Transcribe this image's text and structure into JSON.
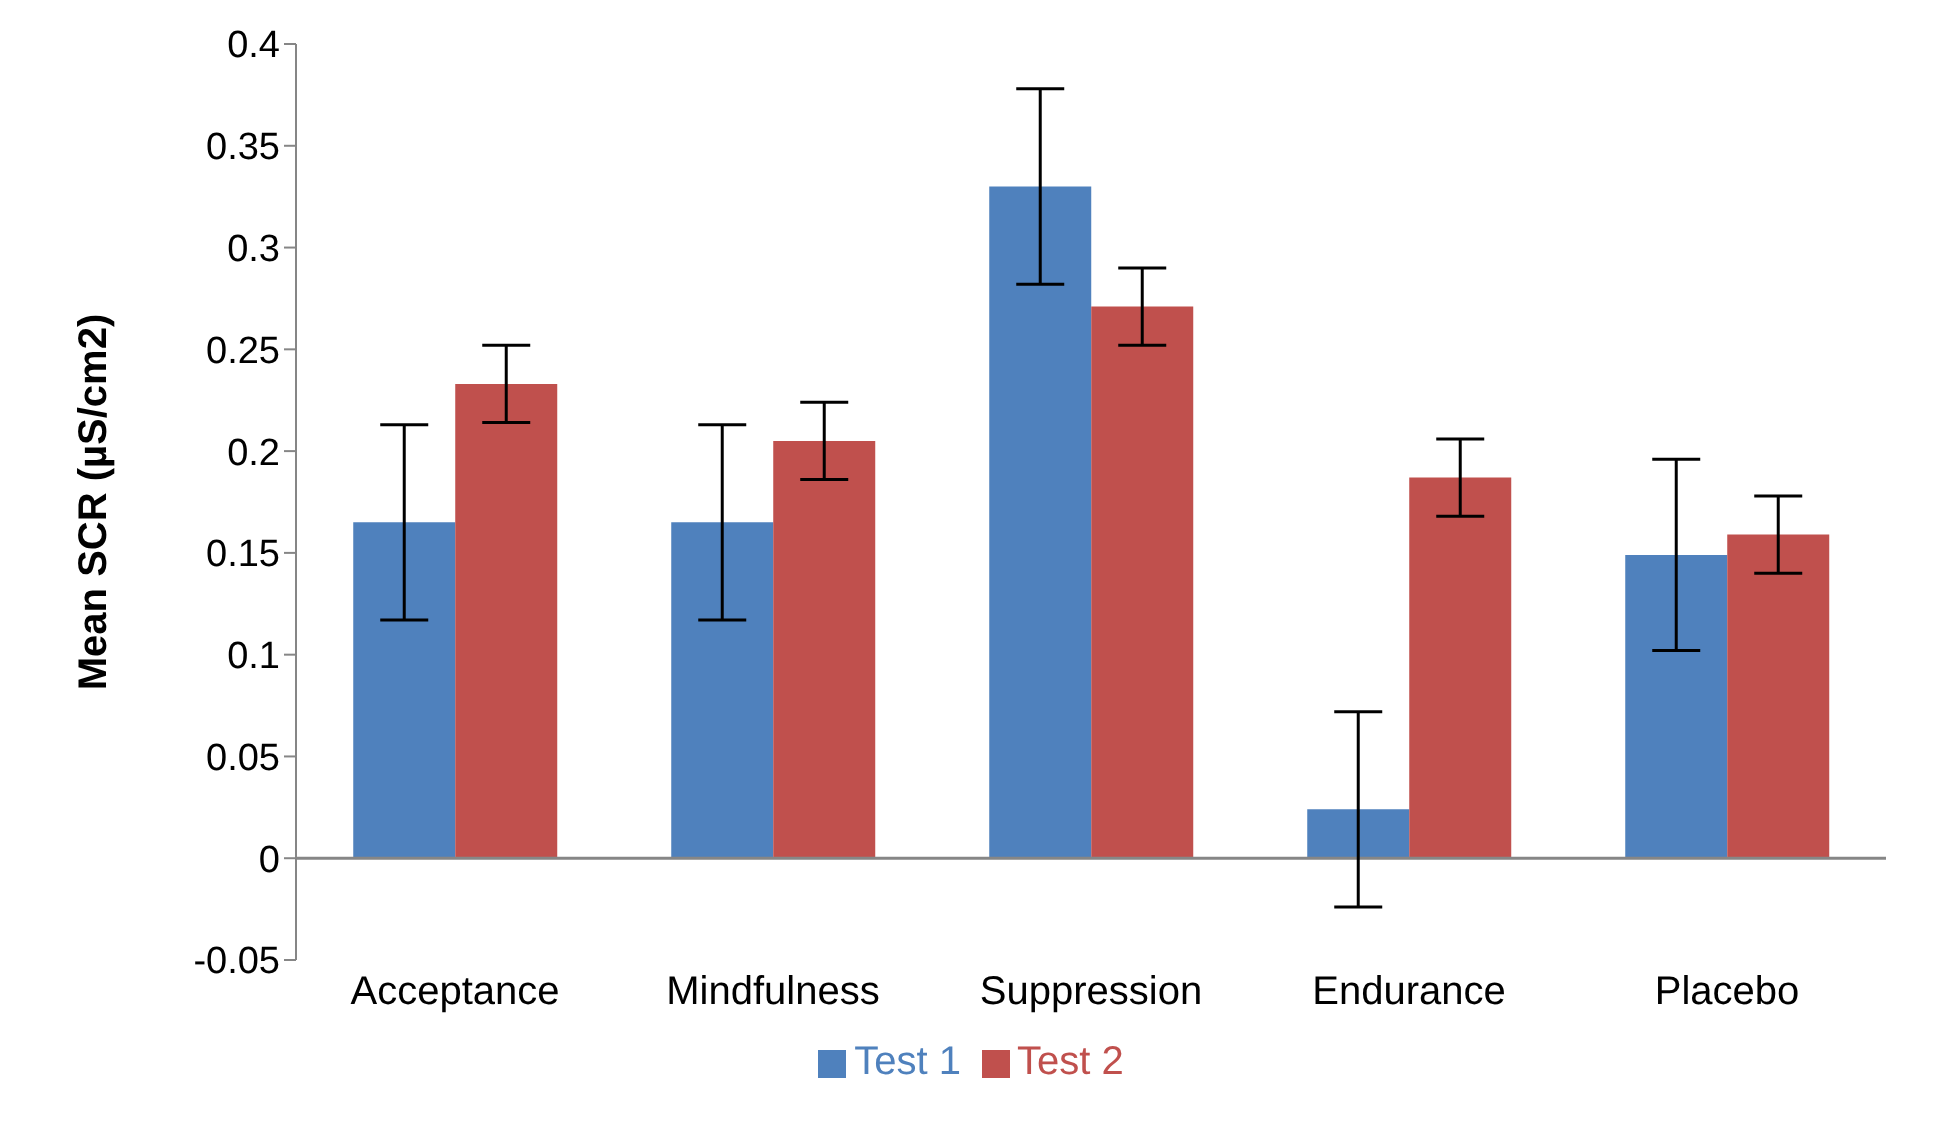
{
  "chart_data": {
    "type": "bar",
    "ylabel": "Mean SCR (µS/cm2)",
    "categories": [
      "Acceptance",
      "Mindfulness",
      "Suppression",
      "Endurance",
      "Placebo"
    ],
    "series": [
      {
        "name": "Test 1",
        "color": "#4f81bd",
        "values": [
          0.165,
          0.165,
          0.33,
          0.024,
          0.149
        ],
        "errors": [
          0.048,
          0.048,
          0.048,
          0.048,
          0.047
        ]
      },
      {
        "name": "Test 2",
        "color": "#c0504d",
        "values": [
          0.233,
          0.205,
          0.271,
          0.187,
          0.159
        ],
        "errors": [
          0.019,
          0.019,
          0.019,
          0.019,
          0.019
        ]
      }
    ],
    "ylim": [
      -0.05,
      0.4
    ],
    "yticks": [
      -0.05,
      0,
      0.05,
      0.1,
      0.15,
      0.2,
      0.25,
      0.3,
      0.35,
      0.4
    ],
    "ref_lines": [
      {
        "axis": "y",
        "value": 0,
        "color": "#868686"
      }
    ],
    "grid": false,
    "legend": "bottom"
  }
}
